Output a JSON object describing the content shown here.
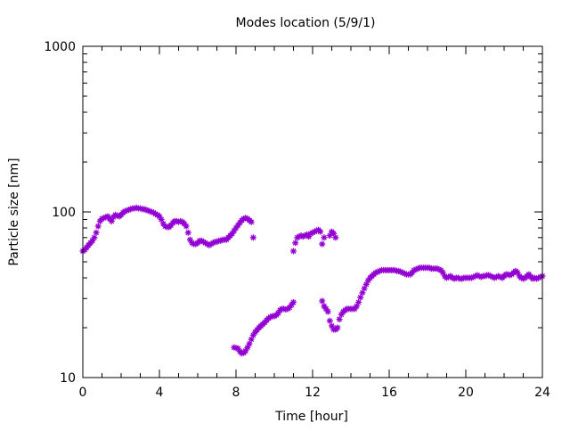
{
  "chart_data": {
    "type": "scatter",
    "title": "Modes location (5/9/1)",
    "xlabel": "Time [hour]",
    "ylabel": "Particle size [nm]",
    "xlim": [
      0,
      24
    ],
    "ylim": [
      10,
      1000
    ],
    "yscale": "log",
    "xticks": [
      0,
      4,
      8,
      12,
      16,
      20,
      24
    ],
    "xtick_labels": [
      "0",
      "4",
      "8",
      "12",
      "16",
      "20",
      "24"
    ],
    "yticks": [
      10,
      100,
      1000
    ],
    "ytick_labels": [
      "10",
      "100",
      "1000"
    ],
    "marker_color": "#9400d3",
    "series": [
      {
        "points": [
          [
            0.0,
            58
          ],
          [
            0.1,
            59
          ],
          [
            0.2,
            61
          ],
          [
            0.3,
            63
          ],
          [
            0.4,
            65
          ],
          [
            0.5,
            67
          ],
          [
            0.6,
            70
          ],
          [
            0.7,
            75
          ],
          [
            0.8,
            82
          ],
          [
            0.9,
            88
          ],
          [
            1.0,
            91
          ],
          [
            1.1,
            92
          ],
          [
            1.2,
            93
          ],
          [
            1.3,
            94
          ],
          [
            1.4,
            91
          ],
          [
            1.5,
            88
          ],
          [
            1.6,
            93
          ],
          [
            1.7,
            96
          ],
          [
            1.8,
            95
          ],
          [
            1.9,
            94
          ],
          [
            2.0,
            96
          ],
          [
            2.1,
            99
          ],
          [
            2.2,
            101
          ],
          [
            2.3,
            102
          ],
          [
            2.4,
            103
          ],
          [
            2.5,
            104
          ],
          [
            2.6,
            105
          ],
          [
            2.7,
            105
          ],
          [
            2.8,
            106
          ],
          [
            2.9,
            105
          ],
          [
            3.0,
            105
          ],
          [
            3.1,
            104
          ],
          [
            3.2,
            104
          ],
          [
            3.3,
            103
          ],
          [
            3.4,
            102
          ],
          [
            3.5,
            101
          ],
          [
            3.6,
            100
          ],
          [
            3.7,
            99
          ],
          [
            3.8,
            97
          ],
          [
            3.9,
            96
          ],
          [
            4.0,
            94
          ],
          [
            4.1,
            90
          ],
          [
            4.2,
            85
          ],
          [
            4.3,
            82
          ],
          [
            4.4,
            81
          ],
          [
            4.5,
            81
          ],
          [
            4.6,
            83
          ],
          [
            4.7,
            86
          ],
          [
            4.8,
            88
          ],
          [
            4.9,
            88
          ],
          [
            5.0,
            87
          ],
          [
            5.1,
            88
          ],
          [
            5.2,
            87
          ],
          [
            5.3,
            85
          ],
          [
            5.4,
            82
          ],
          [
            5.5,
            75
          ],
          [
            5.6,
            68
          ],
          [
            5.7,
            65
          ],
          [
            5.8,
            64
          ],
          [
            5.9,
            64
          ],
          [
            6.0,
            65
          ],
          [
            6.1,
            67
          ],
          [
            6.2,
            67
          ],
          [
            6.3,
            66
          ],
          [
            6.4,
            65
          ],
          [
            6.5,
            64
          ],
          [
            6.6,
            63
          ],
          [
            6.7,
            64
          ],
          [
            6.8,
            65
          ],
          [
            6.9,
            66
          ],
          [
            7.0,
            66
          ],
          [
            7.1,
            67
          ],
          [
            7.2,
            67
          ],
          [
            7.3,
            68
          ],
          [
            7.4,
            68
          ],
          [
            7.5,
            68
          ],
          [
            7.6,
            70
          ],
          [
            7.7,
            72
          ],
          [
            7.8,
            74
          ],
          [
            7.9,
            77
          ],
          [
            8.0,
            80
          ],
          [
            8.1,
            83
          ],
          [
            8.2,
            86
          ],
          [
            8.3,
            89
          ],
          [
            8.4,
            91
          ],
          [
            8.5,
            92
          ],
          [
            8.6,
            91
          ],
          [
            8.7,
            89
          ],
          [
            8.8,
            87
          ],
          [
            8.9,
            70
          ],
          [
            7.9,
            15.2
          ],
          [
            8.0,
            15.1
          ],
          [
            8.1,
            15.0
          ],
          [
            8.2,
            14.4
          ],
          [
            8.3,
            14.0
          ],
          [
            8.4,
            14.1
          ],
          [
            8.5,
            14.5
          ],
          [
            8.6,
            15.2
          ],
          [
            8.7,
            16.0
          ],
          [
            8.8,
            17.0
          ],
          [
            8.9,
            18.0
          ],
          [
            9.0,
            18.8
          ],
          [
            9.1,
            19.4
          ],
          [
            9.2,
            20.0
          ],
          [
            9.3,
            20.5
          ],
          [
            9.4,
            21.0
          ],
          [
            9.5,
            21.5
          ],
          [
            9.6,
            22.2
          ],
          [
            9.7,
            22.8
          ],
          [
            9.8,
            23.2
          ],
          [
            9.9,
            23.5
          ],
          [
            10.0,
            23.5
          ],
          [
            10.1,
            23.8
          ],
          [
            10.2,
            24.5
          ],
          [
            10.3,
            25.5
          ],
          [
            10.4,
            26.0
          ],
          [
            10.5,
            26.0
          ],
          [
            10.6,
            25.8
          ],
          [
            10.7,
            26.0
          ],
          [
            10.8,
            26.5
          ],
          [
            10.9,
            27.5
          ],
          [
            11.0,
            28.5
          ],
          [
            11.0,
            58
          ],
          [
            11.1,
            65
          ],
          [
            11.2,
            70
          ],
          [
            11.3,
            71
          ],
          [
            11.4,
            72
          ],
          [
            11.5,
            71
          ],
          [
            11.6,
            72
          ],
          [
            11.7,
            73
          ],
          [
            11.8,
            71
          ],
          [
            11.9,
            74
          ],
          [
            12.0,
            75
          ],
          [
            12.1,
            76
          ],
          [
            12.2,
            77
          ],
          [
            12.3,
            78
          ],
          [
            12.4,
            76
          ],
          [
            12.5,
            64
          ],
          [
            12.6,
            70
          ],
          [
            12.9,
            72
          ],
          [
            13.0,
            76
          ],
          [
            13.1,
            74
          ],
          [
            13.2,
            70
          ],
          [
            12.5,
            29
          ],
          [
            12.6,
            27
          ],
          [
            12.7,
            26
          ],
          [
            12.8,
            25
          ],
          [
            12.9,
            22
          ],
          [
            13.0,
            20.5
          ],
          [
            13.1,
            19.5
          ],
          [
            13.2,
            19.5
          ],
          [
            13.3,
            20
          ],
          [
            13.4,
            22.5
          ],
          [
            13.5,
            24
          ],
          [
            13.6,
            25
          ],
          [
            13.7,
            25.5
          ],
          [
            13.8,
            26
          ],
          [
            13.9,
            26
          ],
          [
            14.0,
            26
          ],
          [
            14.1,
            26
          ],
          [
            14.2,
            26
          ],
          [
            14.3,
            27
          ],
          [
            14.4,
            28.5
          ],
          [
            14.5,
            30.5
          ],
          [
            14.6,
            32.5
          ],
          [
            14.7,
            34.5
          ],
          [
            14.8,
            36.5
          ],
          [
            14.9,
            38.5
          ],
          [
            15.0,
            40
          ],
          [
            15.1,
            41
          ],
          [
            15.2,
            42
          ],
          [
            15.3,
            43
          ],
          [
            15.4,
            43.5
          ],
          [
            15.5,
            44
          ],
          [
            15.6,
            44.5
          ],
          [
            15.7,
            44.5
          ],
          [
            15.8,
            44.5
          ],
          [
            15.9,
            44.5
          ],
          [
            16.0,
            44.5
          ],
          [
            16.1,
            44.5
          ],
          [
            16.2,
            44.5
          ],
          [
            16.3,
            44.5
          ],
          [
            16.4,
            44
          ],
          [
            16.5,
            44
          ],
          [
            16.6,
            43.5
          ],
          [
            16.7,
            43
          ],
          [
            16.8,
            42.5
          ],
          [
            16.9,
            42
          ],
          [
            17.0,
            42
          ],
          [
            17.1,
            42
          ],
          [
            17.2,
            43
          ],
          [
            17.3,
            44.5
          ],
          [
            17.4,
            45
          ],
          [
            17.5,
            45.5
          ],
          [
            17.6,
            46
          ],
          [
            17.7,
            46
          ],
          [
            17.8,
            46
          ],
          [
            17.9,
            46
          ],
          [
            18.0,
            46
          ],
          [
            18.1,
            46
          ],
          [
            18.2,
            45.5
          ],
          [
            18.3,
            45.5
          ],
          [
            18.4,
            45.5
          ],
          [
            18.5,
            45.5
          ],
          [
            18.6,
            45
          ],
          [
            18.7,
            44.5
          ],
          [
            18.8,
            43
          ],
          [
            18.9,
            41
          ],
          [
            19.0,
            40
          ],
          [
            19.1,
            40.5
          ],
          [
            19.2,
            41
          ],
          [
            19.3,
            40
          ],
          [
            19.4,
            39.5
          ],
          [
            19.5,
            40
          ],
          [
            19.6,
            40
          ],
          [
            19.7,
            39.5
          ],
          [
            19.8,
            39.5
          ],
          [
            19.9,
            40
          ],
          [
            20.0,
            40
          ],
          [
            20.1,
            40
          ],
          [
            20.2,
            40
          ],
          [
            20.3,
            40
          ],
          [
            20.4,
            40.5
          ],
          [
            20.5,
            41
          ],
          [
            20.6,
            41.5
          ],
          [
            20.7,
            41
          ],
          [
            20.8,
            40.5
          ],
          [
            20.9,
            41
          ],
          [
            21.0,
            41
          ],
          [
            21.1,
            41.5
          ],
          [
            21.2,
            41.5
          ],
          [
            21.3,
            41
          ],
          [
            21.4,
            40.5
          ],
          [
            21.5,
            40
          ],
          [
            21.6,
            40.5
          ],
          [
            21.7,
            41
          ],
          [
            21.8,
            40.5
          ],
          [
            21.9,
            40
          ],
          [
            22.0,
            41
          ],
          [
            22.1,
            42
          ],
          [
            22.2,
            42
          ],
          [
            22.3,
            41.5
          ],
          [
            22.4,
            42
          ],
          [
            22.5,
            43
          ],
          [
            22.6,
            44
          ],
          [
            22.7,
            43
          ],
          [
            22.8,
            41
          ],
          [
            22.9,
            40
          ],
          [
            23.0,
            39.5
          ],
          [
            23.1,
            40
          ],
          [
            23.2,
            41
          ],
          [
            23.3,
            42
          ],
          [
            23.4,
            40.5
          ],
          [
            23.5,
            39.5
          ],
          [
            23.6,
            40
          ],
          [
            23.7,
            39.5
          ],
          [
            23.8,
            40
          ],
          [
            23.9,
            40.5
          ],
          [
            24.0,
            41
          ]
        ]
      }
    ]
  }
}
